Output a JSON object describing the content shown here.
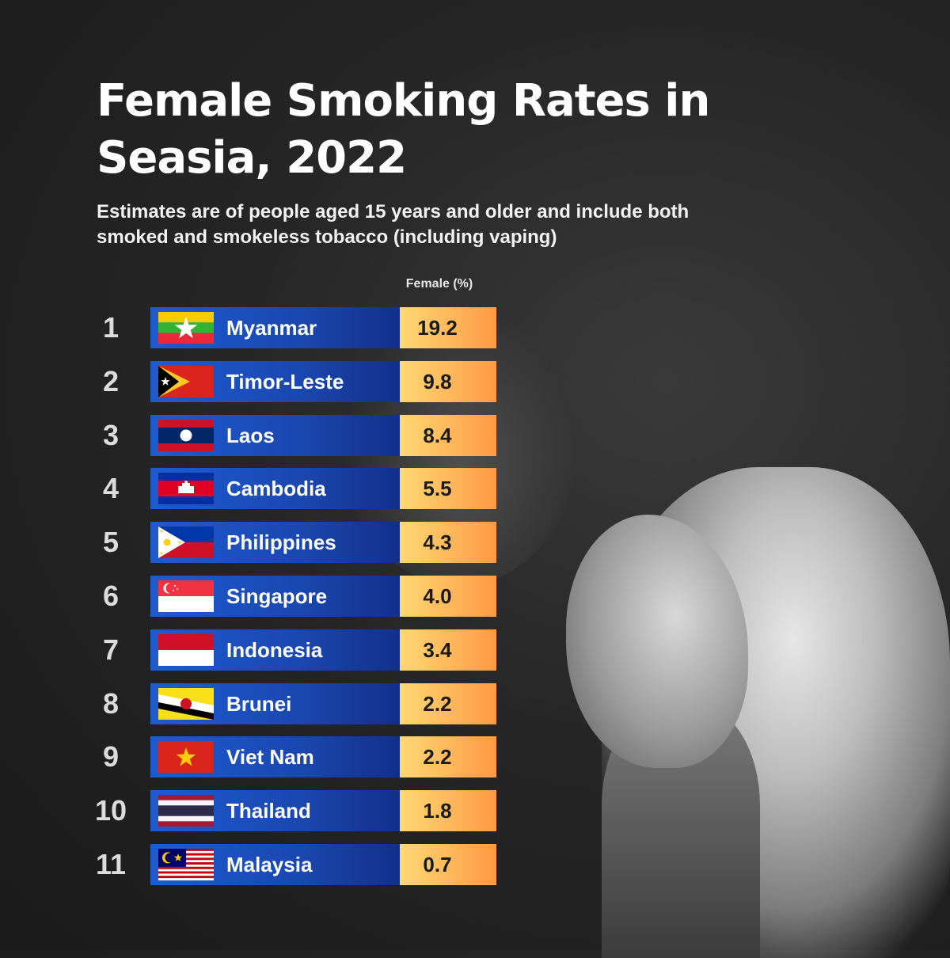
{
  "title": "Female Smoking Rates in Seasia, 2022",
  "subtitle": "Estimates are of people aged 15 years and older and include both smoked and smokeless tobacco (including vaping)",
  "column_header": "Female (%)",
  "colors": {
    "country_bar": "#1f5bd0",
    "value_bar": "#ffb65a"
  },
  "chart_data": {
    "type": "table",
    "title": "Female Smoking Rates in Seasia, 2022",
    "columns": [
      "",
      "",
      "Female (%)"
    ],
    "rows": [
      {
        "rank": "1",
        "country": "Myanmar",
        "flag": "myanmar-flag",
        "value": "19.2"
      },
      {
        "rank": "2",
        "country": "Timor-Leste",
        "flag": "timor-leste-flag",
        "value": "9.8"
      },
      {
        "rank": "3",
        "country": "Laos",
        "flag": "laos-flag",
        "value": "8.4"
      },
      {
        "rank": "4",
        "country": "Cambodia",
        "flag": "cambodia-flag",
        "value": "5.5"
      },
      {
        "rank": "5",
        "country": "Philippines",
        "flag": "philippines-flag",
        "value": "4.3"
      },
      {
        "rank": "6",
        "country": "Singapore",
        "flag": "singapore-flag",
        "value": "4.0"
      },
      {
        "rank": "7",
        "country": "Indonesia",
        "flag": "indonesia-flag",
        "value": "3.4"
      },
      {
        "rank": "8",
        "country": "Brunei",
        "flag": "brunei-flag",
        "value": "2.2"
      },
      {
        "rank": "9",
        "country": "Viet Nam",
        "flag": "viet-nam-flag",
        "value": "2.2"
      },
      {
        "rank": "10",
        "country": "Thailand",
        "flag": "thailand-flag",
        "value": "1.8"
      },
      {
        "rank": "11",
        "country": "Malaysia",
        "flag": "malaysia-flag",
        "value": "0.7"
      }
    ]
  }
}
